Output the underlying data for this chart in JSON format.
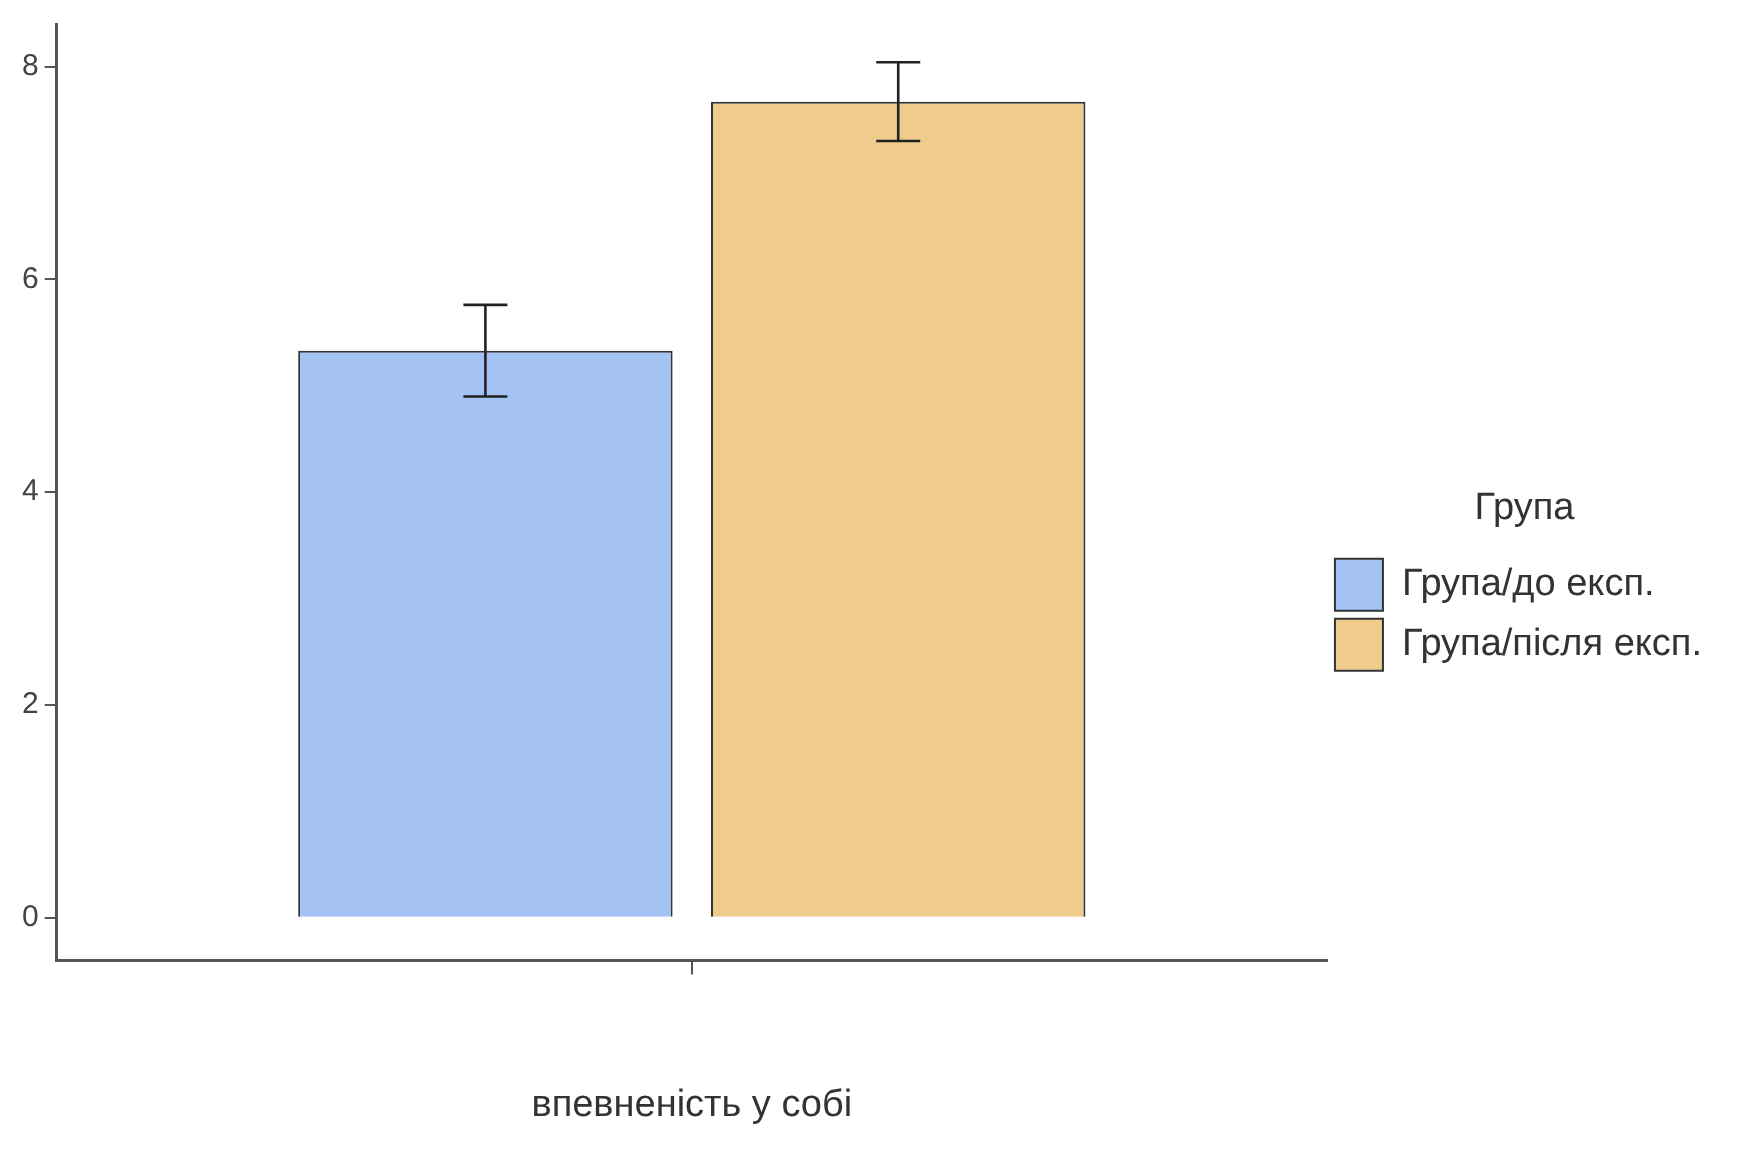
{
  "chart_data": {
    "type": "bar",
    "xlabel": "впевненість у собі",
    "legend_title": "Група",
    "categories": [
      null
    ],
    "series": [
      {
        "name": "Група/до експ.",
        "color": "#a4c2f4",
        "values": [
          5.33
        ],
        "errors": [
          0.43
        ]
      },
      {
        "name": "Група/після експ.",
        "color": "#f0cc8c",
        "values": [
          7.67
        ],
        "errors": [
          0.37
        ]
      }
    ],
    "ylim": [
      -0.4,
      8.4
    ],
    "yticks": [
      0,
      2,
      4,
      6,
      8
    ],
    "grid": false,
    "legend": "right"
  }
}
